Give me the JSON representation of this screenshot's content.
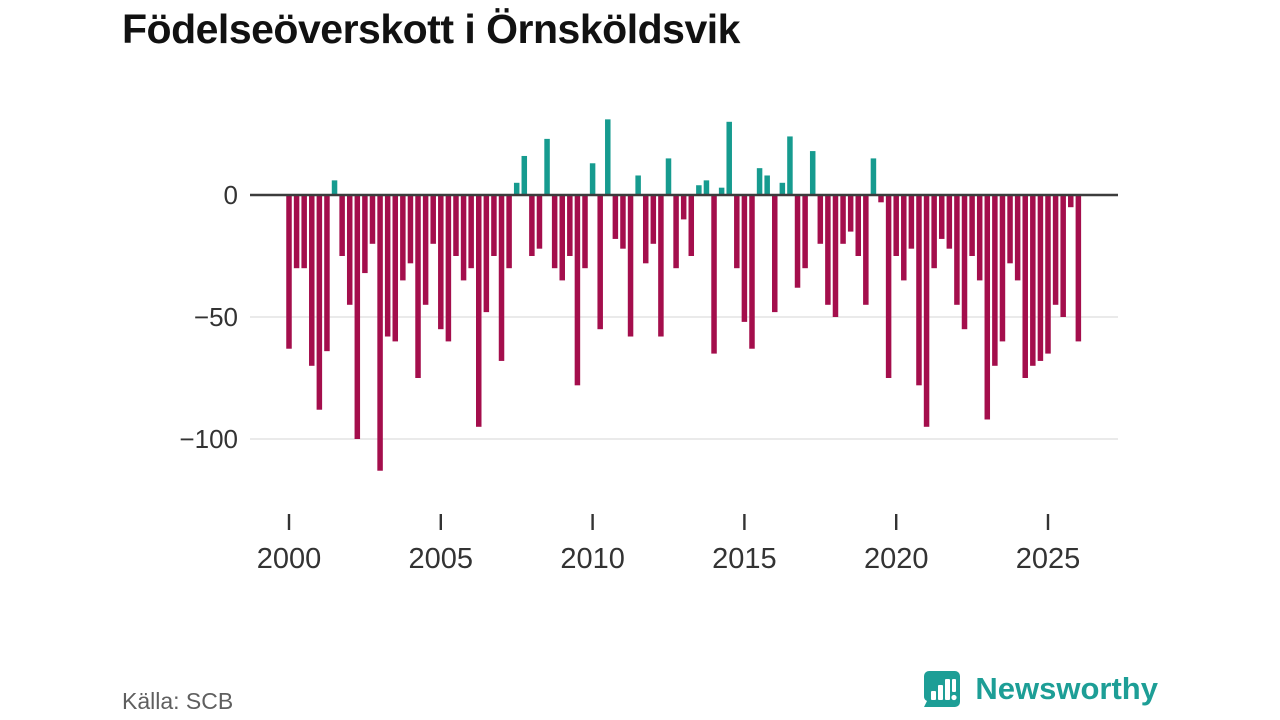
{
  "title": "Födelseöverskott i Örnsköldsvik",
  "source": "Källa: SCB",
  "brand": {
    "name": "Newsworthy",
    "color": "#1D9E96",
    "logo_icon": "bar-chart-speech-bubble-icon"
  },
  "colors": {
    "negative_bar": "#A40E4C",
    "positive_bar": "#169B8F",
    "zero_line": "#3C3C3C",
    "gridline": "#E3E3E3",
    "axis_text": "#333333"
  },
  "chart_data": {
    "type": "bar",
    "title": "Födelseöverskott i Örnsköldsvik",
    "x_unit": "quarter",
    "start_year": 2000,
    "x_tick_years": [
      2000,
      2005,
      2010,
      2015,
      2020,
      2025
    ],
    "x_tick_labels": [
      "2000",
      "2005",
      "2010",
      "2015",
      "2020",
      "2025"
    ],
    "y_ticks": [
      0,
      -50,
      -100
    ],
    "y_tick_labels": [
      "0",
      "−50",
      "−100"
    ],
    "ylim": [
      -120,
      35
    ],
    "grid": "horizontal",
    "legend": "none",
    "values": [
      -63,
      -30,
      -30,
      -70,
      -88,
      -64,
      6,
      -25,
      -45,
      -100,
      -32,
      -20,
      -113,
      -58,
      -60,
      -35,
      -28,
      -75,
      -45,
      -20,
      -55,
      -60,
      -25,
      -35,
      -30,
      -95,
      -48,
      -25,
      -68,
      -30,
      5,
      16,
      -25,
      -22,
      23,
      -30,
      -35,
      -25,
      -78,
      -30,
      13,
      -55,
      31,
      -18,
      -22,
      -58,
      8,
      -28,
      -20,
      -58,
      15,
      -30,
      -10,
      -25,
      4,
      6,
      -65,
      3,
      30,
      -30,
      -52,
      -63,
      11,
      8,
      -48,
      5,
      24,
      -38,
      -30,
      18,
      -20,
      -45,
      -50,
      -20,
      -15,
      -25,
      -45,
      15,
      -3,
      -75,
      -25,
      -35,
      -22,
      -78,
      -95,
      -30,
      -18,
      -22,
      -45,
      -55,
      -25,
      -35,
      -92,
      -70,
      -60,
      -28,
      -35,
      -75,
      -70,
      -68,
      -65,
      -45,
      -50,
      -5,
      -60
    ]
  }
}
